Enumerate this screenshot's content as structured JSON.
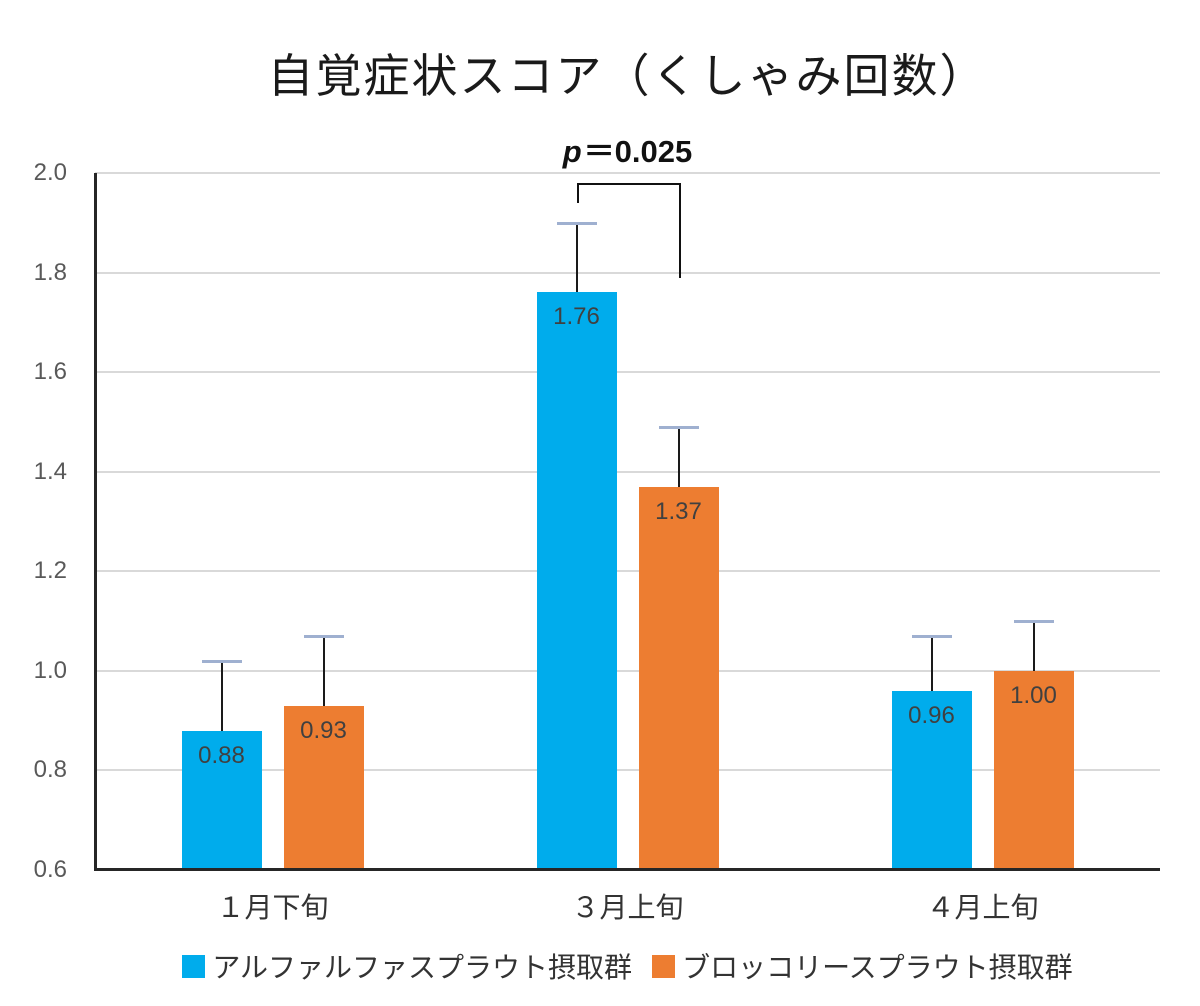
{
  "chart_data": {
    "type": "bar",
    "title": "自覚症状スコア（くしゃみ回数）",
    "annotation": {
      "symbol": "p",
      "text": "＝0.025",
      "bracket": {
        "group_index": 1,
        "top_value": 1.98,
        "left_bottom_value": 1.94,
        "right_bottom_value": 1.79
      }
    },
    "categories": [
      "１月下旬",
      "３月上旬",
      "４月上旬"
    ],
    "series": [
      {
        "name": "アルファルファスプラウト摂取群",
        "color": "#00ACEC",
        "values": [
          0.88,
          1.76,
          0.96
        ],
        "labels": [
          "0.88",
          "1.76",
          "0.96"
        ],
        "error_top": [
          1.02,
          1.9,
          1.07
        ]
      },
      {
        "name": "ブロッコリースプラウト摂取群",
        "color": "#ED7D31",
        "values": [
          0.93,
          1.37,
          1.0
        ],
        "labels": [
          "0.93",
          "1.37",
          "1.00"
        ],
        "error_top": [
          1.07,
          1.49,
          1.1
        ]
      }
    ],
    "ylim": [
      0.6,
      2.0
    ],
    "yticks": [
      "2.0",
      "1.8",
      "1.6",
      "1.4",
      "1.2",
      "1.0",
      "0.8",
      "0.6"
    ],
    "grid": true,
    "legend_position": "bottom",
    "colors": {
      "gridline": "#D9D9D9",
      "axis": "#262626",
      "error_whisker": "#1A1A1A",
      "error_cap": "#9FB0D0",
      "tick_label": "#595959",
      "value_label": "#404040",
      "category_label": "#333333",
      "title": "#1A1A1A"
    }
  }
}
